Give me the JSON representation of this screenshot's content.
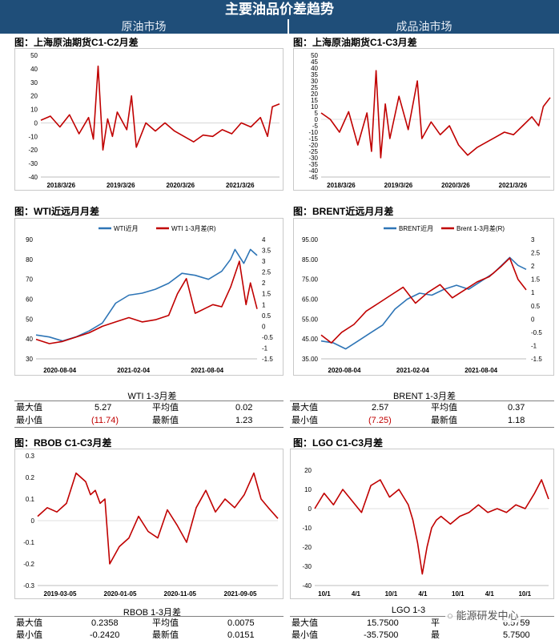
{
  "header": {
    "title": "主要油品价差趋势",
    "left_band": "原油市场",
    "right_band": "成品油市场"
  },
  "colors": {
    "banner": "#1f4e79",
    "series_red": "#c00000",
    "series_blue": "#2e75b6",
    "negative": "#c00000"
  },
  "panels": {
    "sc_c1c2": {
      "caption": "图：上海原油期货C1-C2月差"
    },
    "sc_c1c3": {
      "caption": "图：上海原油期货C1-C3月差"
    },
    "wti": {
      "caption": "图：WTI近远月月差"
    },
    "brent": {
      "caption": "图：BRENT近远月月差"
    },
    "rbob": {
      "caption": "图：RBOB C1-C3月差"
    },
    "lgo": {
      "caption": "图：LGO C1-C3月差"
    }
  },
  "stats": {
    "wti": {
      "title": "WTI 1-3月差",
      "max_label": "最大值",
      "max": "5.27",
      "avg_label": "平均值",
      "avg": "0.02",
      "min_label": "最小值",
      "min": "(11.74)",
      "latest_label": "最新值",
      "latest": "1.23"
    },
    "brent": {
      "title": "BRENT 1-3月差",
      "max_label": "最大值",
      "max": "2.57",
      "avg_label": "平均值",
      "avg": "0.37",
      "min_label": "最小值",
      "min": "(7.25)",
      "latest_label": "最新值",
      "latest": "1.18"
    },
    "rbob": {
      "title": "RBOB 1-3月差",
      "max_label": "最大值",
      "max": "0.2358",
      "avg_label": "平均值",
      "avg": "0.0075",
      "min_label": "最小值",
      "min": "-0.2420",
      "latest_label": "最新值",
      "latest": "0.0151"
    },
    "lgo": {
      "title": "LGO 1-3",
      "max_label": "最大值",
      "max": "15.7500",
      "avg_label": "平",
      "min_label": "最小值",
      "min": "-35.7500",
      "latest_label": "最",
      "latest": "5.7500",
      "avg_partial": "6.5759"
    }
  },
  "watermark": "能源研发中心",
  "chart_data": [
    {
      "id": "sc_c1c2",
      "type": "line",
      "ylim": [
        -40,
        50
      ],
      "yticks": [
        "50",
        "40",
        "30",
        "20",
        "10",
        "0",
        "-10",
        "-20",
        "-30",
        "-40"
      ],
      "xticks": [
        "2018/3/26",
        "2019/3/26",
        "2020/3/26",
        "2021/3/26"
      ],
      "series": [
        {
          "color": "#c00000",
          "x": [
            0,
            0.04,
            0.08,
            0.12,
            0.16,
            0.2,
            0.22,
            0.24,
            0.26,
            0.28,
            0.3,
            0.32,
            0.36,
            0.38,
            0.4,
            0.44,
            0.48,
            0.52,
            0.56,
            0.6,
            0.64,
            0.68,
            0.72,
            0.76,
            0.8,
            0.84,
            0.88,
            0.92,
            0.95,
            0.97,
            1.0
          ],
          "y": [
            2,
            5,
            -3,
            6,
            -8,
            4,
            -12,
            42,
            -20,
            3,
            -10,
            8,
            -5,
            20,
            -18,
            0,
            -6,
            0,
            -6,
            -10,
            -14,
            -9,
            -10,
            -5,
            -8,
            0,
            -3,
            4,
            -10,
            12,
            14
          ]
        }
      ]
    },
    {
      "id": "sc_c1c3",
      "type": "line",
      "ylim": [
        -45,
        50
      ],
      "yticks": [
        "50",
        "45",
        "40",
        "35",
        "30",
        "25",
        "20",
        "15",
        "10",
        "5",
        "0",
        "-5",
        "-10",
        "-15",
        "-20",
        "-25",
        "-30",
        "-35",
        "-40",
        "-45"
      ],
      "xticks": [
        "2018/3/26",
        "2019/3/26",
        "2020/3/26",
        "2021/3/26"
      ],
      "series": [
        {
          "color": "#c00000",
          "x": [
            0,
            0.04,
            0.08,
            0.12,
            0.16,
            0.2,
            0.22,
            0.24,
            0.26,
            0.28,
            0.3,
            0.34,
            0.38,
            0.42,
            0.44,
            0.48,
            0.52,
            0.56,
            0.6,
            0.64,
            0.68,
            0.72,
            0.76,
            0.8,
            0.84,
            0.88,
            0.92,
            0.95,
            0.97,
            1.0
          ],
          "y": [
            5,
            0,
            -10,
            6,
            -20,
            5,
            -25,
            38,
            -30,
            12,
            -15,
            18,
            -8,
            30,
            -15,
            -2,
            -12,
            -5,
            -20,
            -28,
            -22,
            -18,
            -14,
            -10,
            -12,
            -5,
            2,
            -5,
            10,
            17
          ]
        }
      ]
    },
    {
      "id": "wti",
      "type": "line",
      "ylim": [
        30,
        90
      ],
      "y2lim": [
        -1.5,
        4
      ],
      "yticks": [
        "90",
        "80",
        "70",
        "60",
        "50",
        "40",
        "30"
      ],
      "y2ticks": [
        "4",
        "3.5",
        "3",
        "2.5",
        "2",
        "1.5",
        "1",
        "0.5",
        "0",
        "-0.5",
        "-1",
        "-1.5"
      ],
      "xticks": [
        "2020-08-04",
        "2021-02-04",
        "2021-08-04"
      ],
      "series": [
        {
          "name": "WTI近月",
          "axis": "left",
          "color": "#2e75b6",
          "x": [
            0,
            0.06,
            0.12,
            0.18,
            0.24,
            0.3,
            0.36,
            0.42,
            0.48,
            0.54,
            0.6,
            0.66,
            0.72,
            0.78,
            0.84,
            0.88,
            0.9,
            0.94,
            0.97,
            1.0
          ],
          "y": [
            42,
            41,
            39,
            41,
            44,
            48,
            58,
            62,
            63,
            65,
            68,
            73,
            72,
            70,
            74,
            80,
            85,
            78,
            85,
            82
          ]
        },
        {
          "name": "WTI 1-3月差(R)",
          "axis": "right",
          "color": "#c00000",
          "x": [
            0,
            0.06,
            0.12,
            0.18,
            0.24,
            0.3,
            0.36,
            0.42,
            0.48,
            0.54,
            0.6,
            0.64,
            0.68,
            0.72,
            0.76,
            0.8,
            0.84,
            0.88,
            0.92,
            0.95,
            0.97,
            1.0
          ],
          "y": [
            -0.6,
            -0.8,
            -0.7,
            -0.5,
            -0.3,
            0.0,
            0.2,
            0.4,
            0.2,
            0.3,
            0.5,
            1.5,
            2.2,
            0.6,
            0.8,
            1.0,
            0.9,
            1.8,
            3.0,
            1.0,
            2.0,
            0.8
          ]
        }
      ]
    },
    {
      "id": "brent",
      "type": "line",
      "ylim": [
        35,
        95
      ],
      "y2lim": [
        -1.5,
        3
      ],
      "yticks": [
        "95.00",
        "85.00",
        "75.00",
        "65.00",
        "55.00",
        "45.00",
        "35.00"
      ],
      "y2ticks": [
        "3",
        "2.5",
        "2",
        "1.5",
        "1",
        "0.5",
        "0",
        "-0.5",
        "-1",
        "-1.5"
      ],
      "xticks": [
        "2020-08-04",
        "2021-02-04",
        "2021-08-04"
      ],
      "series": [
        {
          "name": "BRENT近月",
          "axis": "left",
          "color": "#2e75b6",
          "x": [
            0,
            0.06,
            0.12,
            0.18,
            0.24,
            0.3,
            0.36,
            0.42,
            0.48,
            0.54,
            0.6,
            0.66,
            0.72,
            0.78,
            0.84,
            0.88,
            0.92,
            0.96,
            1.0
          ],
          "y": [
            44,
            43,
            40,
            44,
            48,
            52,
            60,
            65,
            68,
            67,
            70,
            72,
            70,
            74,
            78,
            82,
            86,
            82,
            80
          ]
        },
        {
          "name": "Brent 1-3月差(R)",
          "axis": "right",
          "color": "#c00000",
          "x": [
            0,
            0.05,
            0.1,
            0.16,
            0.22,
            0.28,
            0.34,
            0.4,
            0.46,
            0.52,
            0.58,
            0.64,
            0.7,
            0.76,
            0.82,
            0.88,
            0.92,
            0.96,
            1.0
          ],
          "y": [
            -0.6,
            -0.9,
            -0.5,
            -0.2,
            0.3,
            0.6,
            0.9,
            1.2,
            0.6,
            1.0,
            1.3,
            0.8,
            1.1,
            1.4,
            1.6,
            2.0,
            2.3,
            1.5,
            1.1
          ]
        }
      ]
    },
    {
      "id": "rbob",
      "type": "line",
      "ylim": [
        -0.3,
        0.3
      ],
      "yticks": [
        "0.3",
        "0.2",
        "0.1",
        "0",
        "-0.1",
        "-0.2",
        "-0.3"
      ],
      "xticks": [
        "2019-03-05",
        "2020-01-05",
        "2020-11-05",
        "2021-09-05"
      ],
      "series": [
        {
          "color": "#c00000",
          "x": [
            0,
            0.04,
            0.08,
            0.12,
            0.16,
            0.2,
            0.22,
            0.24,
            0.26,
            0.28,
            0.3,
            0.34,
            0.38,
            0.42,
            0.46,
            0.5,
            0.54,
            0.58,
            0.62,
            0.66,
            0.7,
            0.74,
            0.78,
            0.82,
            0.86,
            0.9,
            0.93,
            0.96,
            1.0
          ],
          "y": [
            0.02,
            0.06,
            0.04,
            0.08,
            0.22,
            0.18,
            0.12,
            0.14,
            0.08,
            0.1,
            -0.2,
            -0.12,
            -0.08,
            0.02,
            -0.05,
            -0.08,
            0.05,
            -0.02,
            -0.1,
            0.06,
            0.14,
            0.04,
            0.1,
            0.06,
            0.12,
            0.22,
            0.1,
            0.06,
            0.01
          ]
        }
      ]
    },
    {
      "id": "lgo",
      "type": "line",
      "ylim": [
        -40,
        20
      ],
      "yticks": [
        "20",
        "10",
        "0",
        "-10",
        "-20",
        "-30",
        "-40"
      ],
      "xticks": [
        "10/1",
        "4/1",
        "10/1",
        "4/1",
        "10/1",
        "4/1",
        "10/1"
      ],
      "series": [
        {
          "color": "#c00000",
          "x": [
            0,
            0.04,
            0.08,
            0.12,
            0.16,
            0.2,
            0.24,
            0.28,
            0.32,
            0.36,
            0.4,
            0.42,
            0.44,
            0.46,
            0.48,
            0.5,
            0.52,
            0.54,
            0.58,
            0.62,
            0.66,
            0.7,
            0.74,
            0.78,
            0.82,
            0.86,
            0.9,
            0.94,
            0.97,
            1.0
          ],
          "y": [
            0,
            8,
            2,
            10,
            4,
            -2,
            12,
            15,
            6,
            10,
            2,
            -6,
            -18,
            -34,
            -20,
            -10,
            -6,
            -4,
            -8,
            -4,
            -2,
            2,
            -2,
            0,
            -2,
            2,
            0,
            8,
            15,
            5
          ]
        }
      ]
    }
  ]
}
